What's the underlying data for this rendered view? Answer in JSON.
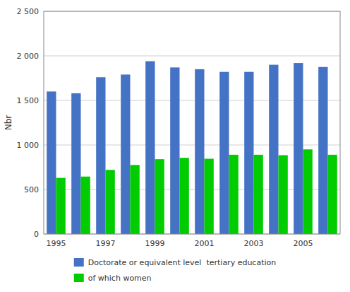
{
  "chart_data": {
    "type": "bar",
    "ylabel": "Nbr",
    "categories": [
      "1995",
      null,
      "1997",
      null,
      "1999",
      null,
      "2001",
      null,
      "2003",
      null,
      "2005",
      null
    ],
    "series": [
      {
        "name": "Doctorate or equivalent level  tertiary education",
        "color": "#4472C4",
        "values": [
          1600,
          1580,
          1760,
          1790,
          1940,
          1870,
          1850,
          1820,
          1820,
          1900,
          1920,
          1875
        ]
      },
      {
        "name": "of which women",
        "color": "#00CC00",
        "values": [
          630,
          645,
          720,
          775,
          840,
          855,
          845,
          890,
          890,
          885,
          950,
          890
        ]
      }
    ],
    "ylim": [
      0,
      2500
    ],
    "yticks": [
      0,
      500,
      {
        "value": 1000,
        "label": "1 000"
      },
      {
        "value": 1500,
        "label": "1 500"
      },
      {
        "value": 2000,
        "label": "2 000"
      },
      {
        "value": 2500,
        "label": "2 500"
      }
    ],
    "grid": true,
    "legend": "bottom"
  }
}
